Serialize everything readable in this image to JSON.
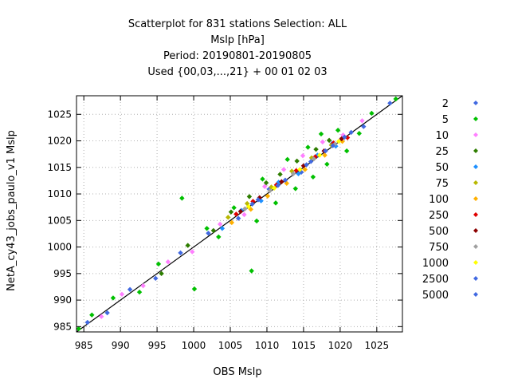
{
  "chart_data": {
    "type": "scatter",
    "title_lines": [
      "Scatterplot for  831 stations Selection: ALL",
      "Mslp [hPa]",
      "Period: 20190801-20190805",
      "Used {00,03,...,21} + 00 01 02 03"
    ],
    "xlabel": "OBS Mslp",
    "ylabel": "NetA_cy43_jobs_paulo_v1 Mslp",
    "xlim": [
      984,
      1028.5
    ],
    "ylim": [
      984,
      1028.5
    ],
    "xticks": [
      985,
      990,
      995,
      1000,
      1005,
      1010,
      1015,
      1020,
      1025
    ],
    "yticks": [
      985,
      990,
      995,
      1000,
      1005,
      1010,
      1015,
      1020,
      1025
    ],
    "grid": true,
    "legend_position": "right",
    "reference_line": "diagonal y = x",
    "series": [
      {
        "name": "2",
        "color": "#4169e1",
        "points": [
          [
            985.5,
            985.8
          ],
          [
            988.2,
            987.6
          ],
          [
            991.3,
            992.0
          ],
          [
            994.8,
            994.1
          ],
          [
            998.2,
            998.9
          ],
          [
            1002.0,
            1002.6
          ],
          [
            1006.1,
            1005.4
          ],
          [
            1010.3,
            1010.9
          ],
          [
            1014.7,
            1014.1
          ],
          [
            1018.9,
            1019.5
          ],
          [
            1023.2,
            1022.7
          ],
          [
            1026.8,
            1027.1
          ]
        ]
      },
      {
        "name": "5",
        "color": "#00c000",
        "points": [
          [
            984.3,
            984.6
          ],
          [
            986.1,
            987.2
          ],
          [
            989.0,
            990.4
          ],
          [
            992.6,
            991.5
          ],
          [
            995.2,
            996.8
          ],
          [
            998.4,
            1009.2
          ],
          [
            1000.1,
            992.1
          ],
          [
            1001.8,
            1003.5
          ],
          [
            1003.4,
            1001.9
          ],
          [
            1005.5,
            1007.4
          ],
          [
            1007.9,
            995.5
          ],
          [
            1008.6,
            1004.9
          ],
          [
            1009.4,
            1012.8
          ],
          [
            1011.2,
            1008.3
          ],
          [
            1012.8,
            1016.5
          ],
          [
            1013.9,
            1011.0
          ],
          [
            1015.6,
            1018.8
          ],
          [
            1016.3,
            1013.2
          ],
          [
            1017.4,
            1021.3
          ],
          [
            1018.2,
            1015.6
          ],
          [
            1019.7,
            1022.0
          ],
          [
            1020.9,
            1018.1
          ],
          [
            1022.6,
            1021.4
          ],
          [
            1024.3,
            1025.2
          ],
          [
            1027.6,
            1027.9
          ]
        ]
      },
      {
        "name": "10",
        "color": "#ff80ff",
        "points": [
          [
            987.4,
            986.9
          ],
          [
            990.2,
            991.1
          ],
          [
            993.1,
            992.7
          ],
          [
            996.5,
            997.2
          ],
          [
            999.8,
            999.1
          ],
          [
            1003.6,
            1004.3
          ],
          [
            1006.9,
            1006.1
          ],
          [
            1009.7,
            1011.4
          ],
          [
            1012.3,
            1014.6
          ],
          [
            1014.9,
            1017.2
          ],
          [
            1017.6,
            1019.8
          ],
          [
            1020.4,
            1021.1
          ],
          [
            1023.0,
            1023.8
          ]
        ]
      },
      {
        "name": "25",
        "color": "#2e7d00",
        "points": [
          [
            995.6,
            995.0
          ],
          [
            999.2,
            1000.3
          ],
          [
            1002.7,
            1003.1
          ],
          [
            1005.1,
            1006.6
          ],
          [
            1007.6,
            1009.5
          ],
          [
            1009.9,
            1012.1
          ],
          [
            1011.8,
            1013.7
          ],
          [
            1014.1,
            1016.2
          ],
          [
            1016.7,
            1018.4
          ],
          [
            1018.5,
            1020.1
          ]
        ]
      },
      {
        "name": "50",
        "color": "#1e90ff",
        "points": [
          [
            1003.9,
            1003.5
          ],
          [
            1006.5,
            1006.9
          ],
          [
            1009.2,
            1008.7
          ],
          [
            1011.6,
            1012.2
          ],
          [
            1014.3,
            1013.8
          ],
          [
            1016.9,
            1017.3
          ],
          [
            1019.4,
            1019.0
          ]
        ]
      },
      {
        "name": "75",
        "color": "#b8b800",
        "points": [
          [
            1004.7,
            1005.6
          ],
          [
            1007.3,
            1008.2
          ],
          [
            1010.6,
            1011.3
          ],
          [
            1013.4,
            1014.3
          ],
          [
            1016.1,
            1016.8
          ],
          [
            1018.8,
            1019.2
          ]
        ]
      },
      {
        "name": "100",
        "color": "#ffb000",
        "points": [
          [
            1005.2,
            1004.6
          ],
          [
            1007.8,
            1007.1
          ],
          [
            1010.1,
            1009.6
          ],
          [
            1012.7,
            1012.0
          ],
          [
            1015.2,
            1014.6
          ],
          [
            1017.9,
            1017.3
          ],
          [
            1020.3,
            1019.9
          ]
        ]
      },
      {
        "name": "250",
        "color": "#e00000",
        "points": [
          [
            1005.8,
            1006.2
          ],
          [
            1008.1,
            1008.6
          ],
          [
            1011.3,
            1011.7
          ],
          [
            1014.0,
            1014.4
          ],
          [
            1016.6,
            1017.0
          ],
          [
            1019.1,
            1019.6
          ],
          [
            1021.0,
            1020.6
          ]
        ]
      },
      {
        "name": "500",
        "color": "#8b0000",
        "points": [
          [
            1006.4,
            1006.7
          ],
          [
            1009.0,
            1009.3
          ],
          [
            1012.0,
            1012.3
          ],
          [
            1015.0,
            1015.3
          ],
          [
            1017.8,
            1018.1
          ],
          [
            1020.2,
            1020.4
          ]
        ]
      },
      {
        "name": "750",
        "color": "#a0a0a0",
        "points": [
          [
            1007.0,
            1007.2
          ],
          [
            1010.4,
            1010.6
          ],
          [
            1013.6,
            1013.8
          ],
          [
            1016.4,
            1016.6
          ],
          [
            1019.3,
            1019.4
          ]
        ]
      },
      {
        "name": "1000",
        "color": "#ffff00",
        "points": [
          [
            1007.5,
            1007.6
          ],
          [
            1011.0,
            1011.1
          ],
          [
            1014.5,
            1014.6
          ],
          [
            1017.2,
            1017.3
          ],
          [
            1019.8,
            1019.9
          ]
        ]
      },
      {
        "name": "2500",
        "color": "#4169e1",
        "points": [
          [
            1008.0,
            1008.1
          ],
          [
            1011.5,
            1011.6
          ],
          [
            1015.4,
            1015.5
          ],
          [
            1018.0,
            1018.1
          ],
          [
            1020.6,
            1020.7
          ]
        ]
      },
      {
        "name": "5000",
        "color": "#4169e1",
        "points": [
          [
            1008.8,
            1008.9
          ],
          [
            1012.5,
            1012.6
          ],
          [
            1016.0,
            1016.1
          ],
          [
            1019.0,
            1019.1
          ],
          [
            1021.5,
            1021.6
          ]
        ]
      }
    ]
  }
}
